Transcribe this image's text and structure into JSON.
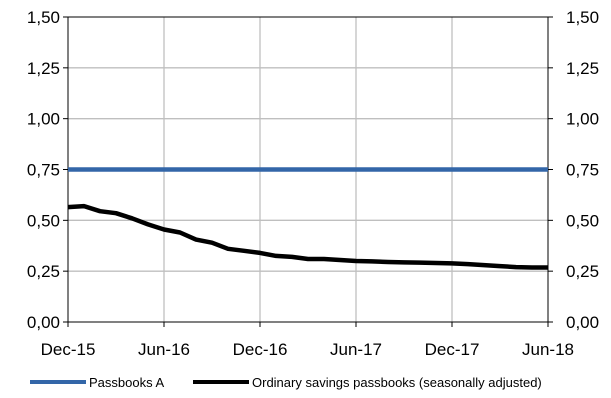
{
  "chart_data": {
    "type": "line",
    "title": "",
    "xlabel": "",
    "ylabel": "",
    "ylim": [
      0,
      1.5
    ],
    "y_ticks": [
      "0,00",
      "0,25",
      "0,50",
      "0,75",
      "1,00",
      "1,25",
      "1,50"
    ],
    "y_tick_values": [
      0,
      0.25,
      0.5,
      0.75,
      1.0,
      1.25,
      1.5
    ],
    "x_ticks": [
      "Dec-15",
      "Jun-16",
      "Dec-16",
      "Jun-17",
      "Dec-17",
      "Jun-18"
    ],
    "x_tick_months": [
      "2015-12",
      "2016-06",
      "2016-12",
      "2017-06",
      "2017-12",
      "2018-06"
    ],
    "grid": true,
    "legend_position": "bottom",
    "series": [
      {
        "name": "Passbooks A",
        "color": "#3366a8",
        "x": [
          "2015-12",
          "2018-06"
        ],
        "values": [
          0.75,
          0.75
        ]
      },
      {
        "name": "Ordinary savings passbooks (seasonally adjusted)",
        "color": "#000000",
        "x": [
          "2015-12",
          "2016-01",
          "2016-02",
          "2016-03",
          "2016-04",
          "2016-05",
          "2016-06",
          "2016-07",
          "2016-08",
          "2016-09",
          "2016-10",
          "2016-11",
          "2016-12",
          "2017-01",
          "2017-02",
          "2017-03",
          "2017-04",
          "2017-05",
          "2017-06",
          "2017-07",
          "2017-08",
          "2017-09",
          "2017-10",
          "2017-11",
          "2017-12",
          "2018-01",
          "2018-02",
          "2018-03",
          "2018-04",
          "2018-05",
          "2018-06"
        ],
        "values": [
          0.565,
          0.57,
          0.545,
          0.535,
          0.51,
          0.48,
          0.455,
          0.44,
          0.405,
          0.39,
          0.36,
          0.35,
          0.34,
          0.325,
          0.32,
          0.31,
          0.31,
          0.305,
          0.3,
          0.298,
          0.295,
          0.293,
          0.292,
          0.29,
          0.288,
          0.285,
          0.28,
          0.275,
          0.27,
          0.268,
          0.268
        ]
      }
    ]
  }
}
